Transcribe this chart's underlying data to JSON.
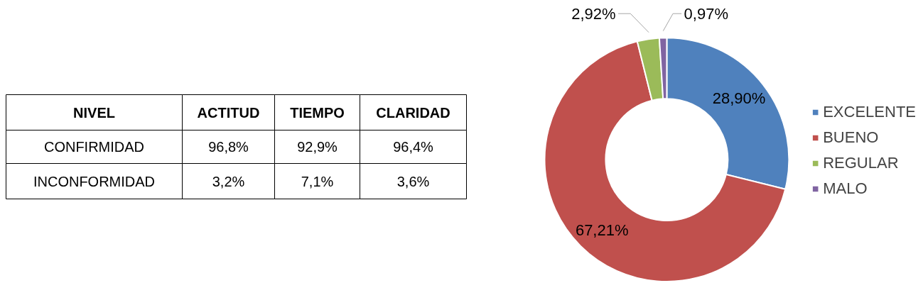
{
  "chart_data": [
    {
      "type": "other",
      "ylabel": "NIVEL",
      "categories": [
        "ACTITUD",
        "TIEMPO",
        "CLARIDAD"
      ],
      "y_categories": [
        "CONFIRMIDAD",
        "INCONFORMIDAD"
      ],
      "cell_labels": [
        [
          "96,8%",
          "92,9%",
          "96,4%"
        ],
        [
          "3,2%",
          "7,1%",
          "3,6%"
        ]
      ]
    },
    {
      "type": "donut",
      "categories": [
        "EXCELENTE",
        "BUENO",
        "REGULAR",
        "MALO"
      ],
      "values": [
        28.9,
        67.21,
        2.92,
        0.97
      ],
      "colors": [
        "#4f81bd",
        "#c0504d",
        "#9bbb59",
        "#8064a2"
      ],
      "value_labels": [
        "28,90%",
        "67,21%",
        "2,92%",
        "0,97%"
      ],
      "legend": "right"
    }
  ]
}
